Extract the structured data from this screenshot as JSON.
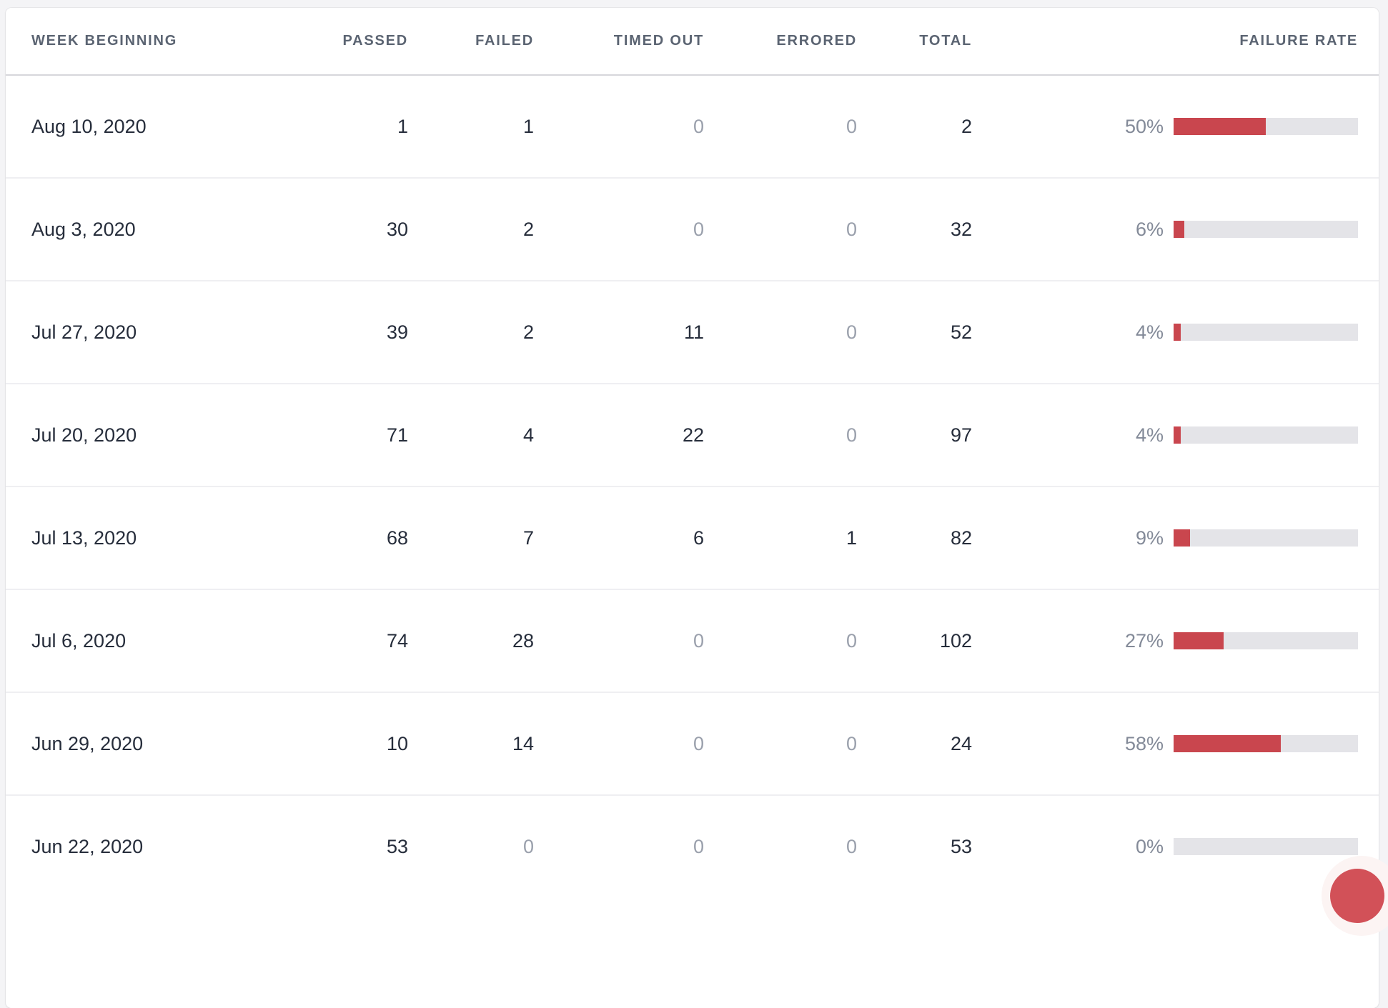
{
  "table": {
    "headers": {
      "week": "Week Beginning",
      "passed": "Passed",
      "failed": "Failed",
      "timed_out": "Timed Out",
      "errored": "Errored",
      "total": "Total",
      "failure_rate": "Failure Rate"
    },
    "rows": [
      {
        "week": "Aug 10, 2020",
        "passed": "1",
        "failed": "1",
        "timed_out": "0",
        "errored": "0",
        "total": "2",
        "rate_label": "50%",
        "rate_pct": 50
      },
      {
        "week": "Aug 3, 2020",
        "passed": "30",
        "failed": "2",
        "timed_out": "0",
        "errored": "0",
        "total": "32",
        "rate_label": "6%",
        "rate_pct": 6
      },
      {
        "week": "Jul 27, 2020",
        "passed": "39",
        "failed": "2",
        "timed_out": "11",
        "errored": "0",
        "total": "52",
        "rate_label": "4%",
        "rate_pct": 4
      },
      {
        "week": "Jul 20, 2020",
        "passed": "71",
        "failed": "4",
        "timed_out": "22",
        "errored": "0",
        "total": "97",
        "rate_label": "4%",
        "rate_pct": 4
      },
      {
        "week": "Jul 13, 2020",
        "passed": "68",
        "failed": "7",
        "timed_out": "6",
        "errored": "1",
        "total": "82",
        "rate_label": "9%",
        "rate_pct": 9
      },
      {
        "week": "Jul 6, 2020",
        "passed": "74",
        "failed": "28",
        "timed_out": "0",
        "errored": "0",
        "total": "102",
        "rate_label": "27%",
        "rate_pct": 27
      },
      {
        "week": "Jun 29, 2020",
        "passed": "10",
        "failed": "14",
        "timed_out": "0",
        "errored": "0",
        "total": "24",
        "rate_label": "58%",
        "rate_pct": 58
      },
      {
        "week": "Jun 22, 2020",
        "passed": "53",
        "failed": "0",
        "timed_out": "0",
        "errored": "0",
        "total": "53",
        "rate_label": "0%",
        "rate_pct": 0
      }
    ]
  },
  "colors": {
    "bar_fill": "#c9464e",
    "bar_background": "#e4e4e8",
    "fab": "#d25158"
  }
}
